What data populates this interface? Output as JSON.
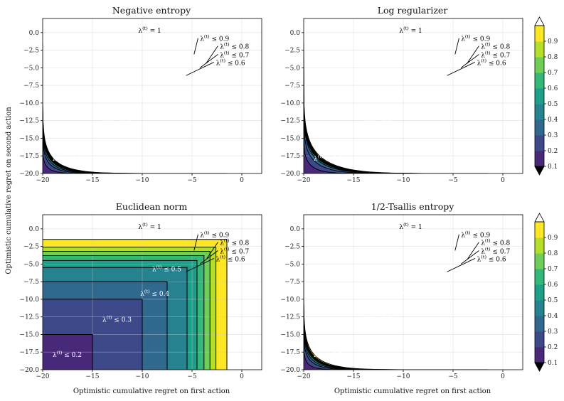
{
  "chart_data": {
    "type": "contourf",
    "xlabel": "Optimistic cumulative regret on first action",
    "ylabel": "Optimistic cumulative regret on second action",
    "xlim": [
      -20,
      2
    ],
    "ylim": [
      -20,
      2
    ],
    "xticks": [
      "−20",
      "−15",
      "−10",
      "−5",
      "0"
    ],
    "yticks": [
      "0.0",
      "−2.5",
      "−5.0",
      "−7.5",
      "−10.0",
      "−12.5",
      "−15.0",
      "−17.5",
      "−20.0"
    ],
    "levels": [
      0.2,
      0.3,
      0.4,
      0.5,
      0.6,
      0.7,
      0.8,
      0.9
    ],
    "colorbar_ticks": [
      "0.1",
      "0.2",
      "0.3",
      "0.4",
      "0.5",
      "0.6",
      "0.7",
      "0.8",
      "0.9"
    ],
    "colors": [
      "#482878",
      "#3e4989",
      "#31688e",
      "#26828e",
      "#1f9e89",
      "#35b779",
      "#6ece58",
      "#b5de2b",
      "#fde725"
    ],
    "annotations": [
      "λ(t) = 1",
      "λ(t) ≤ 0.9",
      "λ(t) ≤ 0.8",
      "λ(t) ≤ 0.7",
      "λ(t) ≤ 0.6",
      "λ(t) ≤ 0.5",
      "λ(t) ≤ 0.4",
      "λ(t) ≤ 0.3",
      "λ(t) ≤ 0.2"
    ],
    "panels": [
      {
        "title": "Negative entropy",
        "norm": "p8",
        "contour_offsets": [
          12,
          8,
          6,
          4.5,
          3.8,
          3.2,
          2.6,
          2.0
        ]
      },
      {
        "title": "Log regularizer",
        "norm": "p6",
        "contour_offsets": [
          11.5,
          7.2,
          5.0,
          4.0,
          3.5,
          3.0,
          2.6,
          2.1
        ]
      },
      {
        "title": "Euclidean norm",
        "norm": "square",
        "contour_offsets": [
          15,
          10,
          7.5,
          5.5,
          4.5,
          3.8,
          3.2,
          2.6
        ]
      },
      {
        "title": "1/2-Tsallis entropy",
        "norm": "p8",
        "contour_offsets": [
          12.5,
          8.5,
          6.5,
          5.0,
          4.2,
          3.6,
          3.1,
          2.6
        ]
      }
    ]
  }
}
